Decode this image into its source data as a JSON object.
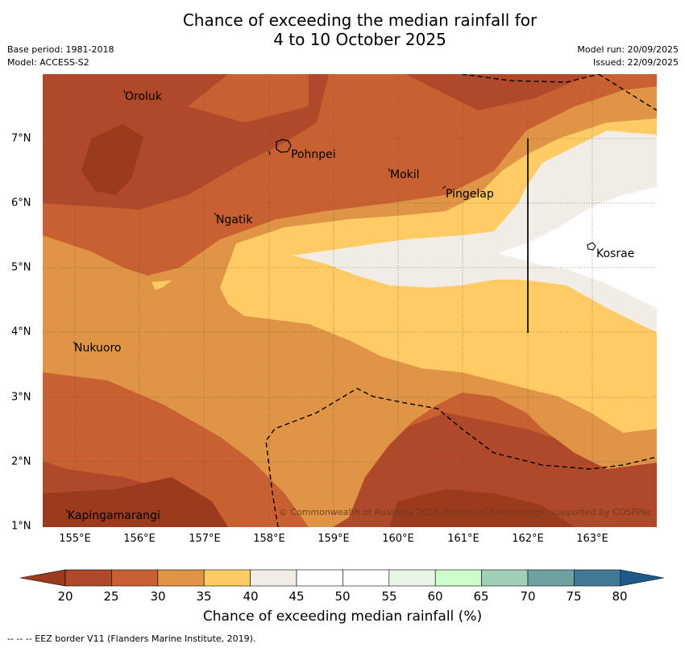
{
  "title": {
    "line1": "Chance of exceeding the median rainfall for",
    "line2": "4 to 10 October 2025"
  },
  "meta": {
    "base_period": "Base period: 1981-2018",
    "model": "Model: ACCESS-S2",
    "model_run": "Model run: 20/09/2025",
    "issued": "Issued: 22/09/2025"
  },
  "map": {
    "places": [
      "Oroluk",
      "Pohnpei",
      "Mokil",
      "Pingelap",
      "Ngatik",
      "Kosrae",
      "Nukuoro",
      "Kapingamarangi"
    ],
    "lon_labels": [
      "155°E",
      "156°E",
      "157°E",
      "158°E",
      "159°E",
      "160°E",
      "161°E",
      "162°E",
      "163°E"
    ],
    "lat_labels": [
      "7°N",
      "6°N",
      "5°N",
      "4°N",
      "3°N",
      "2°N",
      "1°N"
    ],
    "copyright": "© Commonwealth of Australia 2025, Bureau of Meteorology, supported by COSPPac"
  },
  "colorbar": {
    "ticks": [
      "20",
      "25",
      "30",
      "35",
      "40",
      "45",
      "50",
      "55",
      "60",
      "65",
      "70",
      "75",
      "80"
    ],
    "colors": [
      "#9c3a1e",
      "#b0482a",
      "#c96031",
      "#e09446",
      "#fecb65",
      "#f1ede6",
      "#ffffff",
      "#ffffff",
      "#e8f5e7",
      "#cdfccd",
      "#9fcfb6",
      "#6fa1a0",
      "#447897",
      "#1d5a8a"
    ],
    "label": "Chance of exceeding median rainfall (%)"
  },
  "footnote": "-- -- -- EEZ border V11 (Flanders Marine Institute, 2019).",
  "legend_colors": {
    "p20": "#9c3a1e",
    "p25": "#b0482a",
    "p30": "#c96031",
    "p35": "#e09446",
    "p40": "#fecb65",
    "p45": "#f1ede6",
    "p50": "#ffffff"
  }
}
